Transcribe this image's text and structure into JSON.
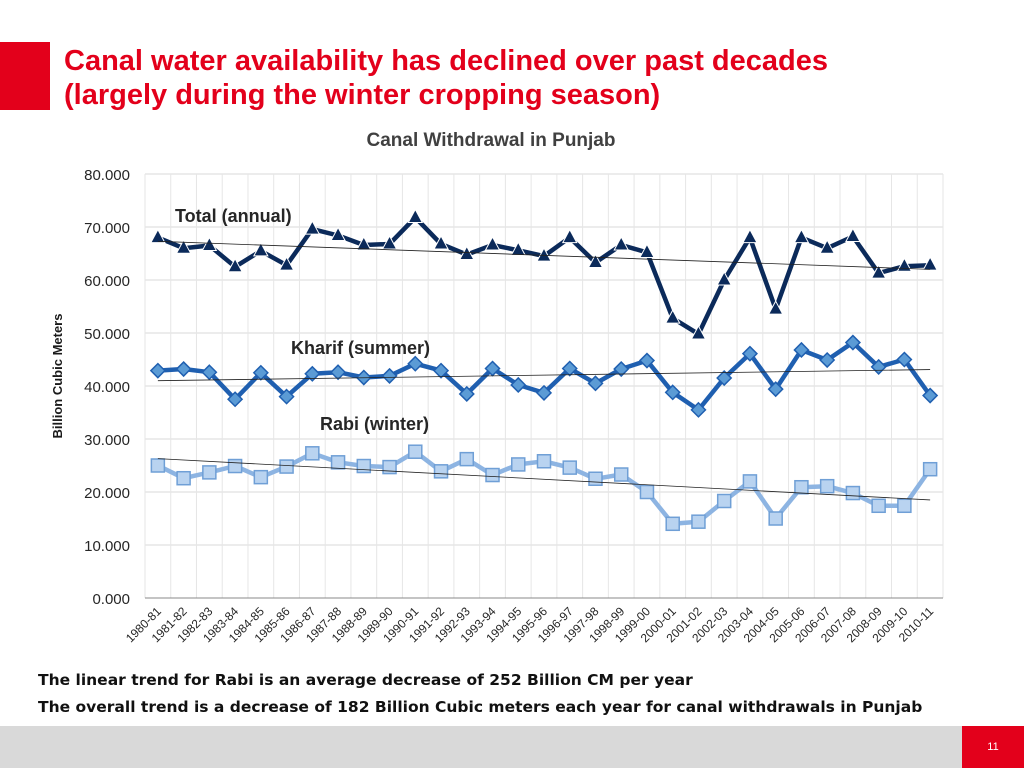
{
  "slide": {
    "title_line1": "Canal water availability has declined over past decades",
    "title_line2": "(largely during the winter cropping season)",
    "note1": "The linear trend for Rabi is an average decrease of 252 Billion CM per year",
    "note2": "The overall trend is a decrease of 182 Billion Cubic meters each year for canal withdrawals in Punjab",
    "page_number": "11",
    "accent_color": "#e3001b"
  },
  "chart_data": {
    "type": "line",
    "title": "Canal Withdrawal in Punjab",
    "xlabel": "",
    "ylabel": "Billion Cubic Meters",
    "ylim": [
      0,
      80
    ],
    "yticks": [
      "0.000",
      "10.000",
      "20.000",
      "30.000",
      "40.000",
      "50.000",
      "60.000",
      "70.000",
      "80.000"
    ],
    "grid": true,
    "legend": "none (series labelled inline)",
    "categories": [
      "1980-81",
      "1981-82",
      "1982-83",
      "1983-84",
      "1984-85",
      "1985-86",
      "1986-87",
      "1987-88",
      "1988-89",
      "1989-90",
      "1990-91",
      "1991-92",
      "1992-93",
      "1993-94",
      "1994-95",
      "1995-96",
      "1996-97",
      "1997-98",
      "1998-99",
      "1999-00",
      "2000-01",
      "2001-02",
      "2002-03",
      "2003-04",
      "2004-05",
      "2005-06",
      "2006-07",
      "2007-08",
      "2008-09",
      "2009-10",
      "2010-11"
    ],
    "series": [
      {
        "name": "Total (annual)",
        "marker": "triangle",
        "color": "#0b2a5a",
        "values": [
          68.0,
          66.0,
          66.5,
          62.5,
          65.5,
          62.8,
          69.6,
          68.4,
          66.6,
          66.8,
          71.8,
          66.8,
          64.8,
          66.6,
          65.6,
          64.5,
          68.0,
          63.3,
          66.6,
          65.2,
          52.8,
          49.8,
          60.0,
          68.0,
          54.5,
          68.0,
          66.0,
          68.2,
          61.3,
          62.6,
          62.8
        ],
        "trend": [
          67.3,
          62.0
        ]
      },
      {
        "name": "Kharif (summer)",
        "marker": "diamond",
        "color": "#1f5fb0",
        "values": [
          42.9,
          43.2,
          42.6,
          37.5,
          42.5,
          38.0,
          42.3,
          42.6,
          41.6,
          41.9,
          44.2,
          42.9,
          38.5,
          43.3,
          40.2,
          38.7,
          43.3,
          40.5,
          43.2,
          44.8,
          38.8,
          35.5,
          41.5,
          46.1,
          39.4,
          46.8,
          44.9,
          48.2,
          43.6,
          45.0,
          38.2
        ],
        "trend": [
          41.0,
          43.1
        ]
      },
      {
        "name": "Rabi (winter)",
        "marker": "square",
        "color": "#8db4e2",
        "values": [
          25.0,
          22.6,
          23.7,
          24.9,
          22.8,
          24.8,
          27.3,
          25.6,
          24.9,
          24.7,
          27.6,
          23.9,
          26.2,
          23.2,
          25.2,
          25.8,
          24.6,
          22.5,
          23.3,
          20.0,
          14.0,
          14.4,
          18.3,
          22.0,
          15.0,
          20.9,
          21.1,
          19.8,
          17.4,
          17.4,
          24.3
        ],
        "trend": [
          26.3,
          18.5
        ]
      }
    ]
  }
}
